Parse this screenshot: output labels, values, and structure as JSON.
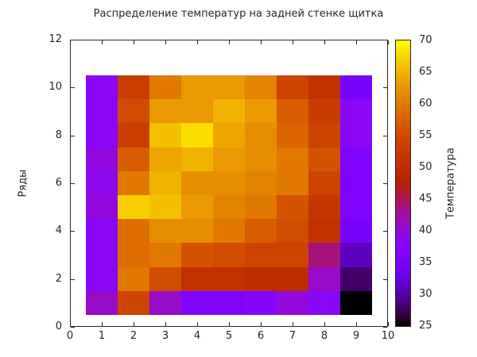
{
  "figure": {
    "background": "#ffffff",
    "text_color": "#262626",
    "axis_color": "#262626"
  },
  "chart_data": {
    "type": "heatmap",
    "title": "Распределение температур на задней стенке щитка",
    "xlabel": "",
    "ylabel": "Ряды",
    "colorbar_label": "Температура",
    "x_range": [
      0,
      10
    ],
    "y_range": [
      0,
      12
    ],
    "x_tick_labels": [
      "0",
      "1",
      "2",
      "3",
      "4",
      "5",
      "6",
      "7",
      "8",
      "9",
      "10"
    ],
    "x_tick_values": [
      0,
      1,
      2,
      3,
      4,
      5,
      6,
      7,
      8,
      9,
      10
    ],
    "y_tick_labels": [
      "0",
      "2",
      "4",
      "6",
      "8",
      "10",
      "12"
    ],
    "y_tick_values": [
      0,
      2,
      4,
      6,
      8,
      10,
      12
    ],
    "colorbar_tick_labels": [
      "25",
      "30",
      "35",
      "40",
      "45",
      "50",
      "55",
      "60",
      "65",
      "70"
    ],
    "colorbar_tick_values": [
      25,
      30,
      35,
      40,
      45,
      50,
      55,
      60,
      65,
      70
    ],
    "zmin": 25,
    "zmax": 70,
    "colormap": "gnuplot",
    "colormap_key_colors": {
      "25": "#000000",
      "30": "#5a01aa",
      "35": "#7803fb",
      "40": "#9309dd",
      "45": "#aa1657",
      "50": "#be2b00",
      "55": "#d04c00",
      "60": "#e17800",
      "65": "#f0b300",
      "70": "#ffff00"
    },
    "x_centers": [
      1,
      2,
      3,
      4,
      5,
      6,
      7,
      8,
      9
    ],
    "y_centers": [
      1,
      2,
      3,
      4,
      5,
      6,
      7,
      8,
      9,
      10
    ],
    "cell_extent": {
      "x": [
        0.5,
        9.5
      ],
      "y": [
        0.5,
        10.5
      ]
    },
    "rows_top_to_bottom": [
      10,
      9,
      8,
      7,
      6,
      5,
      4,
      3,
      2,
      1
    ],
    "values": [
      [
        38,
        53,
        60,
        63,
        63,
        61,
        54,
        51,
        35
      ],
      [
        38,
        55,
        63,
        63,
        65,
        63,
        57,
        53,
        38
      ],
      [
        38,
        53,
        66,
        68,
        64,
        62,
        58,
        54,
        38
      ],
      [
        40,
        57,
        64,
        65,
        63,
        62,
        60,
        56,
        36
      ],
      [
        39,
        60,
        65,
        62,
        62,
        61,
        60,
        54,
        36
      ],
      [
        40,
        67,
        66,
        63,
        61,
        60,
        56,
        52,
        36
      ],
      [
        38,
        59,
        62,
        62,
        60,
        57,
        55,
        51,
        35
      ],
      [
        38,
        59,
        60,
        56,
        55,
        54,
        54,
        44,
        31
      ],
      [
        38,
        60,
        55,
        51,
        51,
        50,
        50,
        41,
        28
      ],
      [
        41,
        54,
        41,
        36,
        36,
        37,
        40,
        38,
        25
      ]
    ]
  }
}
